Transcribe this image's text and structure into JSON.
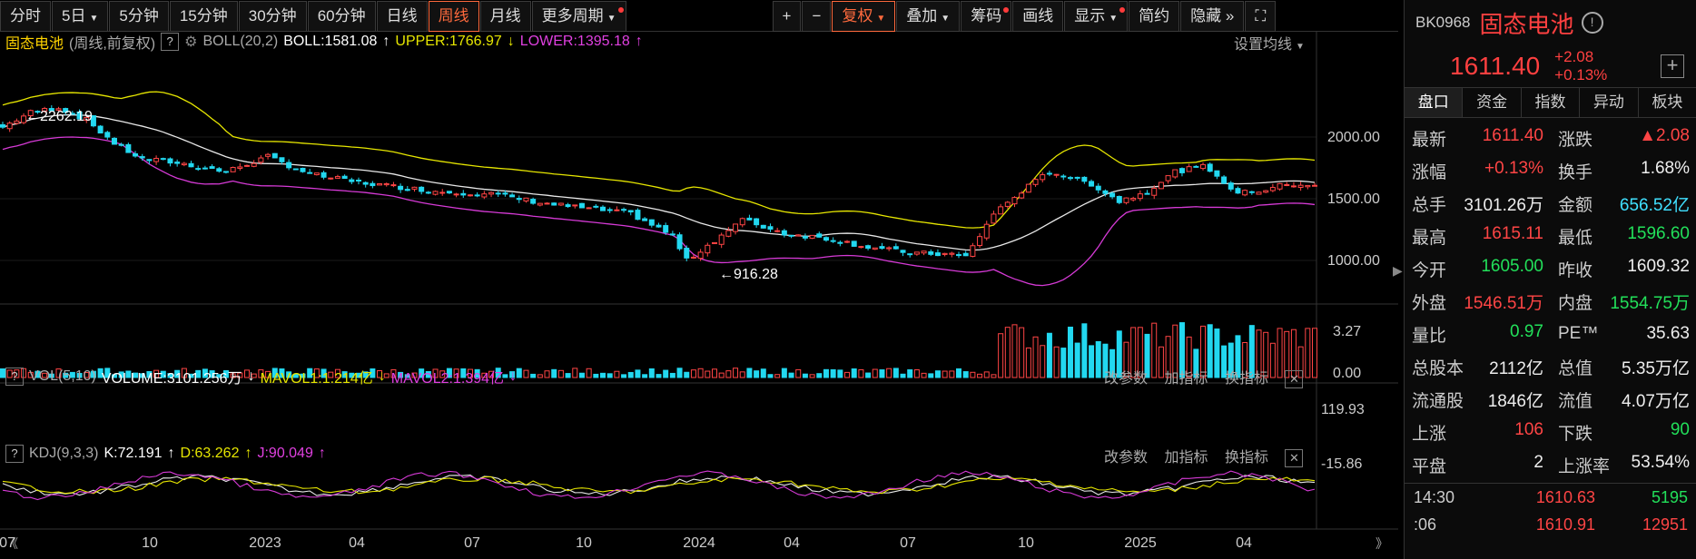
{
  "toolbar": {
    "left": [
      "分时",
      "5日",
      "5分钟",
      "15分钟",
      "30分钟",
      "60分钟",
      "日线",
      "周线",
      "月线",
      "更多周期"
    ],
    "active": "周线",
    "right": [
      "+",
      "−",
      "复权",
      "叠加",
      "筹码",
      "画线",
      "显示",
      "简约",
      "隐藏"
    ]
  },
  "main_panel": {
    "name": "固态电池",
    "mode": "(周线,前复权)",
    "indicator": "BOLL(20,2)",
    "boll": "BOLL:1581.08",
    "upper": "UPPER:1766.97",
    "lower": "LOWER:1395.18",
    "setting": "设置均线",
    "high_label": "2262.19",
    "low_label": "916.28",
    "y_ticks": [
      "2000.00",
      "1500.00",
      "1000.00"
    ]
  },
  "vol_panel": {
    "name": "VOL(5,10)",
    "volume": "VOLUME:3101.256万",
    "mavol1": "MAVOL1:1.214亿",
    "mavol2": "MAVOL2:1.394亿",
    "y_ticks": [
      "3.27",
      "0.00"
    ],
    "links": [
      "改参数",
      "加指标",
      "换指标"
    ]
  },
  "kdj_panel": {
    "name": "KDJ(9,3,3)",
    "k": "K:72.191",
    "d": "D:63.262",
    "j": "J:90.049",
    "y_ticks": [
      "119.93",
      "-15.86"
    ],
    "links": [
      "改参数",
      "加指标",
      "换指标"
    ]
  },
  "x_axis": [
    "07",
    "10",
    "2023",
    "04",
    "07",
    "10",
    "2024",
    "04",
    "07",
    "10",
    "2025",
    "04"
  ],
  "sidebar": {
    "code": "BK0968",
    "name": "固态电池",
    "price": "1611.40",
    "change": "+2.08",
    "change_pct": "+0.13%",
    "tabs": [
      "盘口",
      "资金",
      "指数",
      "异动",
      "板块"
    ],
    "stats": [
      [
        {
          "k": "最新",
          "v": "1611.40",
          "c": "red"
        },
        {
          "k": "涨跌",
          "v": "▲2.08",
          "c": "red"
        }
      ],
      [
        {
          "k": "涨幅",
          "v": "+0.13%",
          "c": "red"
        },
        {
          "k": "换手",
          "v": "1.68%",
          "c": "white"
        }
      ],
      [
        {
          "k": "总手",
          "v": "3101.26万",
          "c": "white"
        },
        {
          "k": "金额",
          "v": "656.52亿",
          "c": "cyan"
        }
      ],
      [
        {
          "k": "最高",
          "v": "1615.11",
          "c": "red"
        },
        {
          "k": "最低",
          "v": "1596.60",
          "c": "green"
        }
      ],
      [
        {
          "k": "今开",
          "v": "1605.00",
          "c": "green"
        },
        {
          "k": "昨收",
          "v": "1609.32",
          "c": "white"
        }
      ],
      [
        {
          "k": "外盘",
          "v": "1546.51万",
          "c": "red"
        },
        {
          "k": "内盘",
          "v": "1554.75万",
          "c": "green"
        }
      ],
      [
        {
          "k": "量比",
          "v": "0.97",
          "c": "green"
        },
        {
          "k": "PE™",
          "v": "35.63",
          "c": "white"
        }
      ],
      [
        {
          "k": "总股本",
          "v": "2112亿",
          "c": "white"
        },
        {
          "k": "总值",
          "v": "5.35万亿",
          "c": "white"
        }
      ],
      [
        {
          "k": "流通股",
          "v": "1846亿",
          "c": "white"
        },
        {
          "k": "流值",
          "v": "4.07万亿",
          "c": "white"
        }
      ],
      [
        {
          "k": "上涨",
          "v": "106",
          "c": "red"
        },
        {
          "k": "下跌",
          "v": "90",
          "c": "green"
        }
      ],
      [
        {
          "k": "平盘",
          "v": "2",
          "c": "white"
        },
        {
          "k": "上涨率",
          "v": "53.54%",
          "c": "white"
        }
      ]
    ],
    "ticks": [
      {
        "t": "14:30",
        "p": "1610.63",
        "v": "5195",
        "c": "green"
      },
      {
        "t": ":06",
        "p": "1610.91",
        "v": "12951",
        "c": "red"
      }
    ]
  },
  "colors": {
    "up": "#ff4545",
    "down": "#22d8f0",
    "upper": "#e6e600",
    "lower": "#d63ad6",
    "mid": "#e8e8e8",
    "accent": "#ff6a3d"
  }
}
